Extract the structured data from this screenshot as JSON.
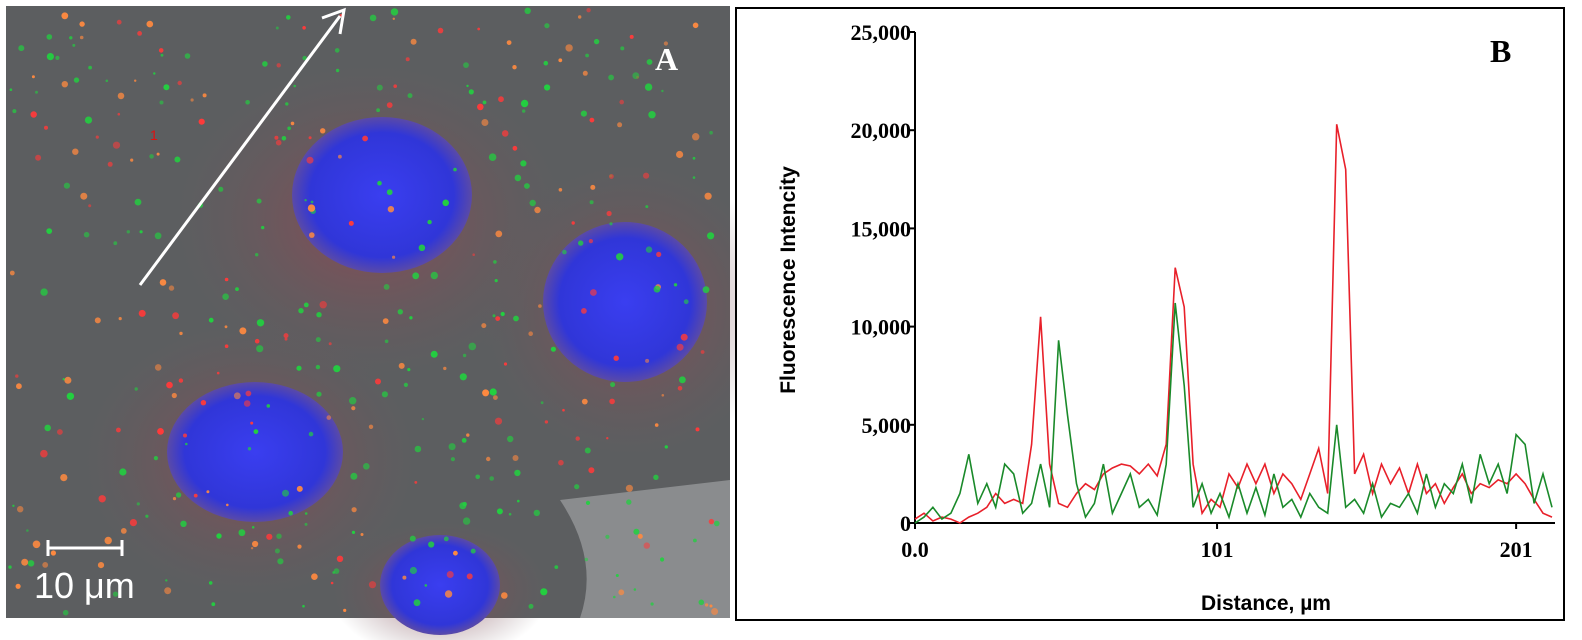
{
  "image_panel": {
    "label": "A",
    "scale_bar": "10 μm",
    "marker": "1"
  },
  "chart_data": {
    "type": "line",
    "panel_label": "B",
    "x_label": "Distance, µm",
    "y_label": "Fluorescence Intencity",
    "x": [
      0,
      3,
      6,
      9,
      12,
      15,
      18,
      21,
      24,
      27,
      30,
      33,
      36,
      39,
      42,
      45,
      48,
      51,
      54,
      57,
      60,
      63,
      66,
      69,
      72,
      75,
      78,
      81,
      84,
      87,
      90,
      93,
      96,
      99,
      102,
      105,
      108,
      111,
      114,
      117,
      120,
      123,
      126,
      129,
      132,
      135,
      138,
      141,
      144,
      147,
      150,
      153,
      156,
      159,
      162,
      165,
      168,
      171,
      174,
      177,
      180,
      183,
      186,
      189,
      192,
      195,
      198,
      201,
      204,
      207,
      210,
      213
    ],
    "series": [
      {
        "color": "#e8202a",
        "values": [
          200,
          500,
          100,
          300,
          200,
          0,
          300,
          500,
          800,
          1500,
          1000,
          1200,
          1000,
          4000,
          10500,
          3000,
          1000,
          800,
          1500,
          2000,
          1700,
          2500,
          2800,
          3000,
          2900,
          2500,
          3000,
          2400,
          4000,
          13000,
          11000,
          3000,
          500,
          1200,
          800,
          2500,
          1800,
          3000,
          2000,
          3000,
          1500,
          2500,
          2000,
          1200,
          2500,
          3800,
          1500,
          20300,
          18000,
          2500,
          3500,
          1500,
          3000,
          2000,
          2800,
          1500,
          3000,
          1500,
          2000,
          1000,
          1800,
          2500,
          1500,
          2000,
          1800,
          2200,
          2000,
          2500,
          2000,
          1200,
          500,
          300
        ]
      },
      {
        "color": "#1a8a2a",
        "values": [
          0,
          300,
          800,
          200,
          500,
          1500,
          3500,
          1000,
          2000,
          800,
          3000,
          2500,
          500,
          1000,
          3000,
          800,
          9300,
          5500,
          2000,
          300,
          1000,
          3000,
          500,
          1500,
          2500,
          800,
          1200,
          400,
          3000,
          11200,
          7000,
          800,
          2000,
          500,
          1500,
          300,
          2000,
          500,
          1800,
          400,
          2500,
          800,
          1200,
          300,
          1500,
          800,
          500,
          5000,
          800,
          1200,
          500,
          2000,
          300,
          1000,
          800,
          1500,
          500,
          2500,
          800,
          2000,
          1500,
          3000,
          1000,
          3500,
          2000,
          3000,
          1500,
          4500,
          4000,
          1000,
          2500,
          800
        ]
      }
    ],
    "xlim": [
      0,
      214
    ],
    "ylim": [
      0,
      25000
    ],
    "xticks": [
      {
        "value": 0,
        "label": "0.0"
      },
      101,
      201
    ],
    "yticks": [
      0,
      {
        "value": 5000,
        "label": "5,000"
      },
      {
        "value": 10000,
        "label": "10,000"
      },
      {
        "value": 15000,
        "label": "15,000"
      },
      {
        "value": 20000,
        "label": "20,000"
      },
      {
        "value": 25000,
        "label": "25,000"
      }
    ]
  }
}
